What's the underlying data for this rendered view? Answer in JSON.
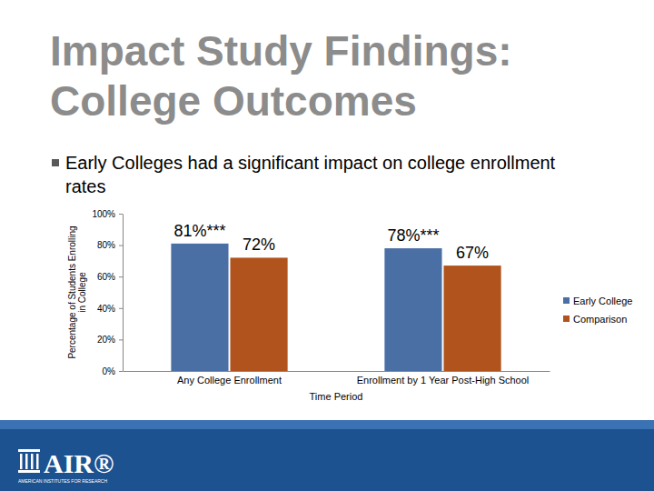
{
  "chart_data": {
    "type": "bar",
    "title": "Impact Study Findings: College Outcomes",
    "subtitle": "Early Colleges had a significant impact on college enrollment rates",
    "categories": [
      "Any College Enrollment",
      "Enrollment by 1 Year Post-High School"
    ],
    "series": [
      {
        "name": "Early College",
        "color": "#4a6fa5",
        "values": [
          81,
          78
        ],
        "value_labels": [
          "81%***",
          "78%***"
        ]
      },
      {
        "name": "Comparison",
        "color": "#b0531c",
        "values": [
          72,
          67
        ],
        "value_labels": [
          "72%",
          "67%"
        ]
      }
    ],
    "x_label": "Time Period",
    "y_label": "Percentage of Students Enrolling in College",
    "ylim": [
      0,
      100
    ],
    "yticks": [
      {
        "value": 0,
        "label": "0%"
      },
      {
        "value": 20,
        "label": "20%"
      },
      {
        "value": 40,
        "label": "40%"
      },
      {
        "value": 60,
        "label": "60%"
      },
      {
        "value": 80,
        "label": "80%"
      },
      {
        "value": 100,
        "label": "100%"
      }
    ],
    "grid": false,
    "legend": "right",
    "data_labels": true
  },
  "footer": {
    "logo": "AIR®",
    "organization": "AMERICAN INSTITUTES FOR RESEARCH"
  }
}
